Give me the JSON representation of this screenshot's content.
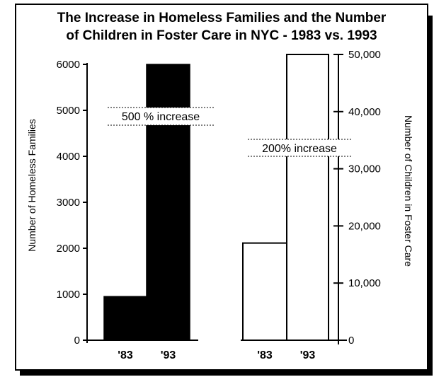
{
  "colors": {
    "left_bar": "#000000",
    "right_bar": "#ffffff",
    "ink": "#000000",
    "background": "#ffffff"
  },
  "chart_data": [
    {
      "type": "bar",
      "title_lines": [
        "The Increase in Homeless Families and the Number",
        "of Children in Foster Care in NYC  -  1983  vs. 1993"
      ],
      "categories": [
        "'83",
        "'93"
      ],
      "values": [
        950,
        6000
      ],
      "ylabel": "Number of Homeless Families",
      "ylim": [
        0,
        6000
      ],
      "yticks": [
        0,
        1000,
        2000,
        3000,
        4000,
        5000,
        6000
      ],
      "ytick_labels": [
        "0",
        "1000",
        "2000",
        "3000",
        "4000",
        "5000",
        "6000"
      ],
      "annotation": "500 % increase",
      "bar_fill": "black",
      "axis_side": "left"
    },
    {
      "type": "bar",
      "categories": [
        "'83",
        "'93"
      ],
      "values": [
        17000,
        50000
      ],
      "ylabel": "Number of Children in Foster Care",
      "ylim": [
        0,
        50000
      ],
      "yticks": [
        0,
        10000,
        20000,
        30000,
        40000,
        50000
      ],
      "ytick_labels": [
        "0",
        "10,000",
        "20,000",
        "30,000",
        "40,000",
        "50,000"
      ],
      "annotation": "200% increase",
      "bar_fill": "white",
      "axis_side": "right"
    }
  ]
}
